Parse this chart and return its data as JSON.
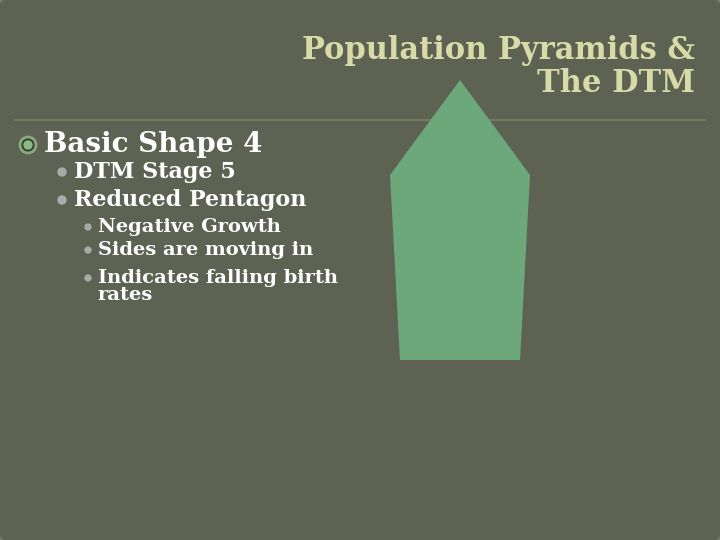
{
  "title_line1": "Population Pyramids &",
  "title_line2": "The DTM",
  "bg_color": "#626658",
  "bg_inner": "#5d6253",
  "title_color": "#d8dba8",
  "text_color": "#ffffff",
  "divider_color": "#7a7f66",
  "bullet1": "Basic Shape 4",
  "sub_bullets": [
    "DTM Stage 5",
    "Reduced Pentagon"
  ],
  "sub_sub_bullets": [
    "Negative Growth",
    "Sides are moving in",
    "Indicates falling birth\nrates"
  ],
  "shape_color": "#6da87a",
  "shape_color_edge": "#6da87a",
  "title_fontsize": 22,
  "bullet1_fontsize": 20,
  "sub_fontsize": 16,
  "subsub_fontsize": 14,
  "fig_width": 7.2,
  "fig_height": 5.4,
  "dpi": 100
}
